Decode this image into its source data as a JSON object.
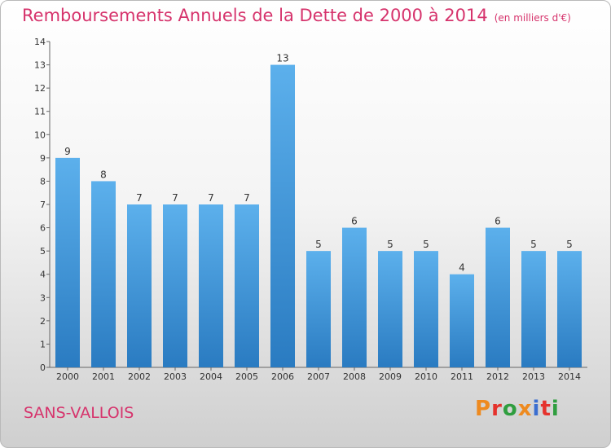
{
  "title": "Remboursements Annuels de la Dette de 2000 à 2014",
  "subtitle": "(en milliers d'€)",
  "commune": "SANS-VALLOIS",
  "logo": "Proxiti",
  "colors": {
    "title": "#d6336c",
    "bar": "#3a93d9",
    "logo": [
      "#ee8a1f",
      "#e5322c",
      "#2f9e3f",
      "#ee8a1f",
      "#3b6ed0",
      "#e5322c",
      "#2f9e3f"
    ]
  },
  "chart_data": {
    "type": "bar",
    "title": "Remboursements Annuels de la Dette de 2000 à 2014",
    "subtitle": "(en milliers d'€)",
    "categories": [
      "2000",
      "2001",
      "2002",
      "2003",
      "2004",
      "2005",
      "2006",
      "2007",
      "2008",
      "2009",
      "2010",
      "2011",
      "2012",
      "2013",
      "2014"
    ],
    "values": [
      9,
      8,
      7,
      7,
      7,
      7,
      13,
      5,
      6,
      5,
      5,
      4,
      6,
      5,
      5
    ],
    "ylim": [
      0,
      14
    ],
    "yticks": [
      0,
      1,
      2,
      3,
      4,
      5,
      6,
      7,
      8,
      9,
      10,
      11,
      12,
      13,
      14
    ],
    "grid": false,
    "legend": "none"
  }
}
